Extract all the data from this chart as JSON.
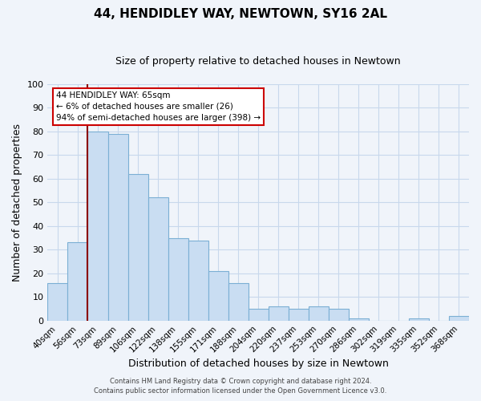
{
  "title": "44, HENDIDLEY WAY, NEWTOWN, SY16 2AL",
  "subtitle": "Size of property relative to detached houses in Newtown",
  "xlabel": "Distribution of detached houses by size in Newtown",
  "ylabel": "Number of detached properties",
  "bar_labels": [
    "40sqm",
    "56sqm",
    "73sqm",
    "89sqm",
    "106sqm",
    "122sqm",
    "138sqm",
    "155sqm",
    "171sqm",
    "188sqm",
    "204sqm",
    "220sqm",
    "237sqm",
    "253sqm",
    "270sqm",
    "286sqm",
    "302sqm",
    "319sqm",
    "335sqm",
    "352sqm",
    "368sqm"
  ],
  "bar_heights": [
    16,
    33,
    80,
    79,
    62,
    52,
    35,
    34,
    21,
    16,
    5,
    6,
    5,
    6,
    5,
    1,
    0,
    0,
    1,
    0,
    2
  ],
  "bar_color": "#c9ddf2",
  "bar_edge_color": "#7bafd4",
  "vline_color": "#8b0000",
  "ylim": [
    0,
    100
  ],
  "yticks": [
    0,
    10,
    20,
    30,
    40,
    50,
    60,
    70,
    80,
    90,
    100
  ],
  "annotation_title": "44 HENDIDLEY WAY: 65sqm",
  "annotation_line1": "← 6% of detached houses are smaller (26)",
  "annotation_line2": "94% of semi-detached houses are larger (398) →",
  "annotation_box_color": "#ffffff",
  "annotation_box_edge": "#cc0000",
  "footer1": "Contains HM Land Registry data © Crown copyright and database right 2024.",
  "footer2": "Contains public sector information licensed under the Open Government Licence v3.0.",
  "background_color": "#f0f4fa",
  "plot_bg_color": "#f0f4fa",
  "grid_color": "#c8d8ec"
}
